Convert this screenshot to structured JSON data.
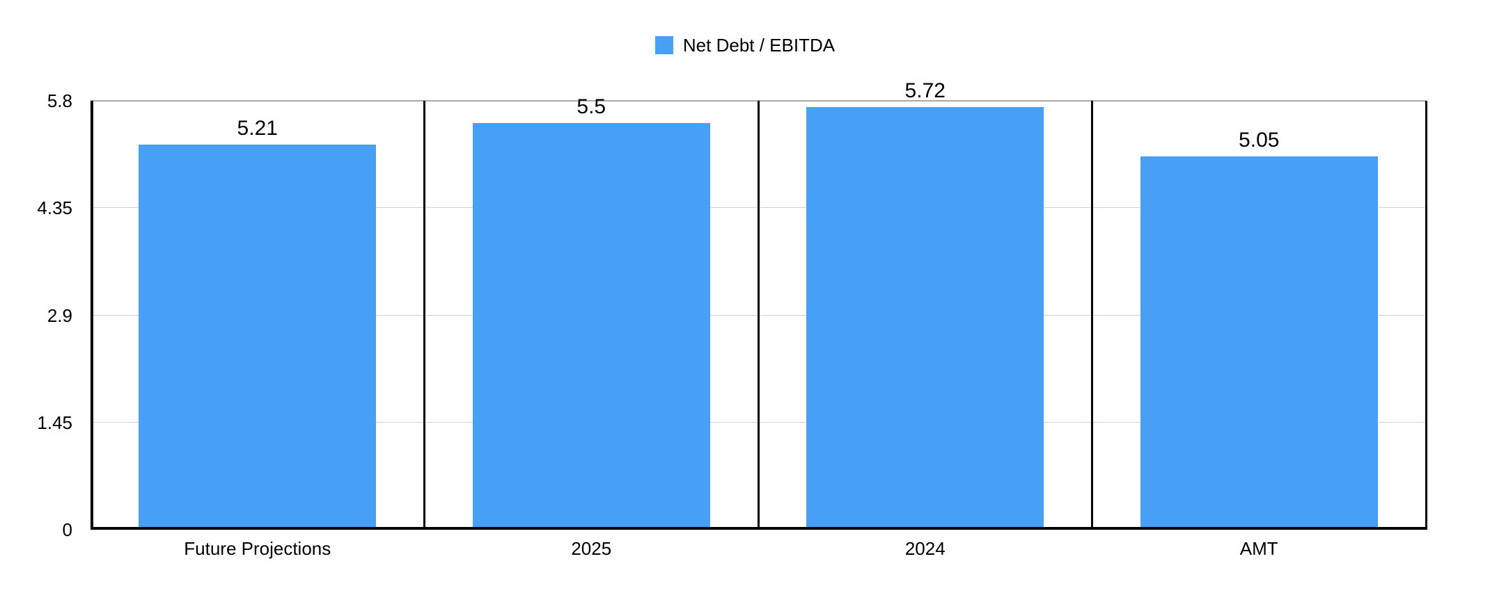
{
  "legend": {
    "label": "Net Debt / EBITDA"
  },
  "chart_data": {
    "type": "bar",
    "title": "",
    "categories": [
      "Future Projections",
      "2025",
      "2024",
      "AMT"
    ],
    "series": [
      {
        "name": "Net Debt / EBITDA",
        "values": [
          5.21,
          5.5,
          5.72,
          5.05
        ]
      }
    ],
    "value_labels": [
      "5.21",
      "5.5",
      "5.72",
      "5.05"
    ],
    "ylim": [
      0,
      5.8
    ],
    "yticks": [
      0,
      1.45,
      2.9,
      4.35,
      5.8
    ],
    "ytick_labels": [
      "0",
      "1.45",
      "2.9",
      "4.35",
      "5.8"
    ],
    "grid": "horizontal",
    "legend_position": "top-center",
    "bar_color": "#47A0F5",
    "axis_color": "#000000",
    "gridline_color": "#D2D2D2",
    "top_gridline_color": "#A8A8A8"
  }
}
